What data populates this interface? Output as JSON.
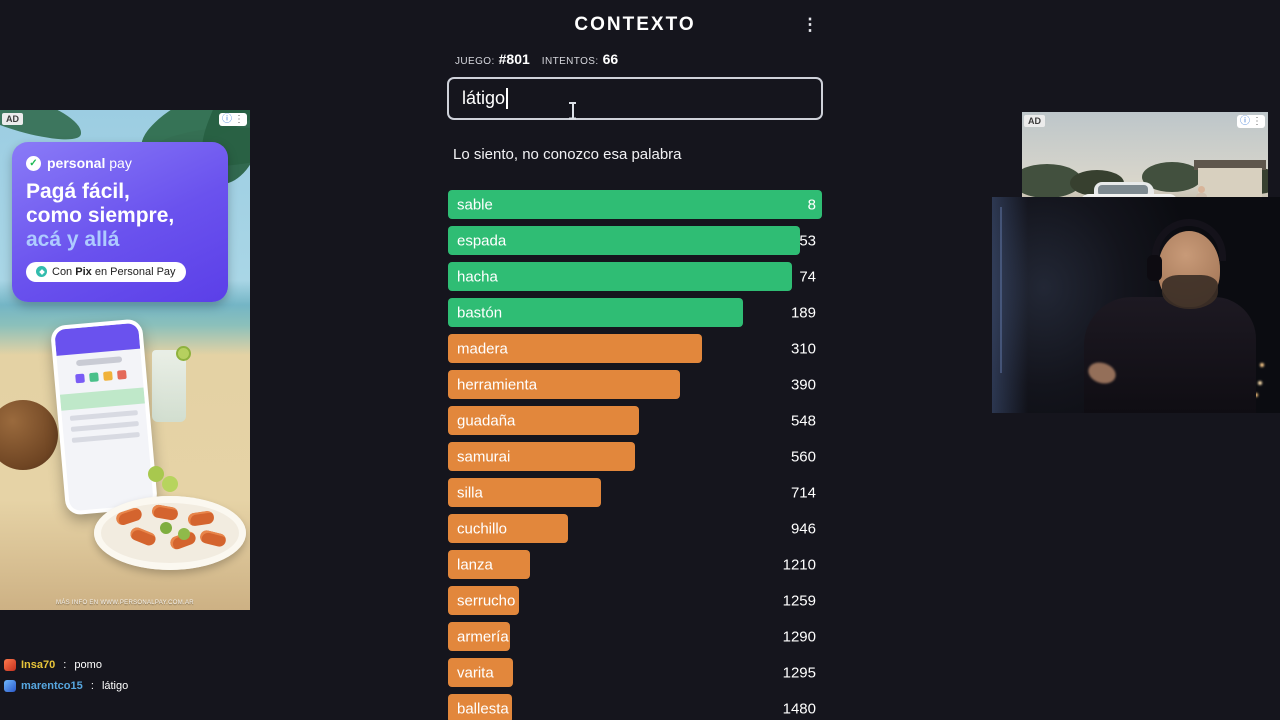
{
  "colors": {
    "green": "#2fbd74",
    "orange": "#e2873c"
  },
  "header": {
    "title": "CONTEXTO",
    "menu_icon": "⋮"
  },
  "game": {
    "meta": {
      "game_label": "JUEGO:",
      "game_number": "#801",
      "attempts_label": "INTENTOS:",
      "attempts_value": "66"
    },
    "input_value": "látigo",
    "message": "Lo siento, no conozco esa palabra",
    "guesses": [
      {
        "word": "sable",
        "rank": "8",
        "color": "green",
        "width_pct": 100
      },
      {
        "word": "espada",
        "rank": "53",
        "color": "green",
        "width_pct": 94
      },
      {
        "word": "hacha",
        "rank": "74",
        "color": "green",
        "width_pct": 92
      },
      {
        "word": "bastón",
        "rank": "189",
        "color": "green",
        "width_pct": 79
      },
      {
        "word": "madera",
        "rank": "310",
        "color": "orange",
        "width_pct": 68
      },
      {
        "word": "herramienta",
        "rank": "390",
        "color": "orange",
        "width_pct": 62
      },
      {
        "word": "guadaña",
        "rank": "548",
        "color": "orange",
        "width_pct": 51
      },
      {
        "word": "samurai",
        "rank": "560",
        "color": "orange",
        "width_pct": 50
      },
      {
        "word": "silla",
        "rank": "714",
        "color": "orange",
        "width_pct": 41
      },
      {
        "word": "cuchillo",
        "rank": "946",
        "color": "orange",
        "width_pct": 32
      },
      {
        "word": "lanza",
        "rank": "1210",
        "color": "orange",
        "width_pct": 22
      },
      {
        "word": "serrucho",
        "rank": "1259",
        "color": "orange",
        "width_pct": 19
      },
      {
        "word": "armería",
        "rank": "1290",
        "color": "orange",
        "width_pct": 16.5
      },
      {
        "word": "varita",
        "rank": "1295",
        "color": "orange",
        "width_pct": 17.5
      },
      {
        "word": "ballesta",
        "rank": "1480",
        "color": "orange",
        "width_pct": 17
      }
    ]
  },
  "ads": {
    "left": {
      "ad_label": "AD",
      "info_icon": "ⓘ",
      "menu_icon": "⋮",
      "logo_check": "✓",
      "brand_bold": "personal",
      "brand_light": "pay",
      "headline": [
        "Pagá fácil,",
        "como siempre,",
        "acá y allá"
      ],
      "pill_prefix": "Con",
      "pill_bold": "Pix",
      "pill_suffix": "en Personal Pay",
      "footer": "MÁS INFO EN WWW.PERSONALPAY.COM.AR"
    },
    "right": {
      "ad_label": "AD",
      "info_icon": "ⓘ",
      "menu_icon": "⋮"
    }
  },
  "chat": {
    "separator": " : ",
    "messages": [
      {
        "user": "Insa70",
        "text": "pomo",
        "user_color": "#e8c53a",
        "badge_color_a": "#ff7a4d",
        "badge_color_b": "#c22f1f"
      },
      {
        "user": "marentco15",
        "text": "látigo",
        "user_color": "#57a7e0",
        "badge_color_a": "#6fb9ff",
        "badge_color_b": "#2b58c8"
      }
    ]
  }
}
